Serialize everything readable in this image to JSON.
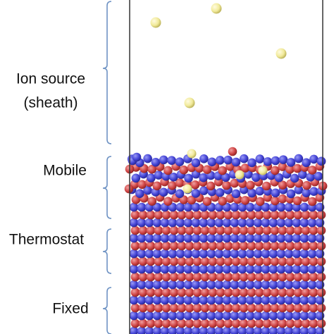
{
  "regions": [
    {
      "lines": [
        "Ion source",
        "(sheath)"
      ]
    },
    {
      "lines": [
        "Mobile"
      ]
    },
    {
      "lines": [
        "Thermostat"
      ]
    },
    {
      "lines": [
        "Fixed"
      ]
    }
  ]
}
